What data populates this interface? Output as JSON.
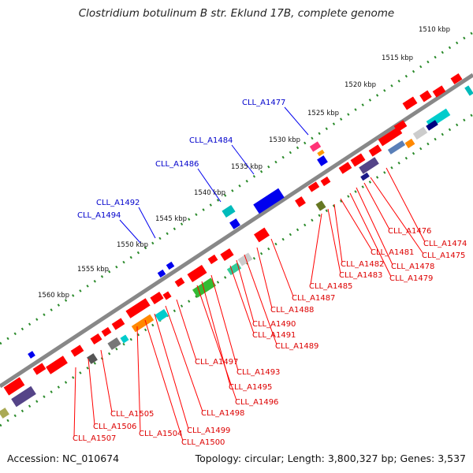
{
  "title": "Clostridium botulinum B str. Eklund 17B, complete genome",
  "accession": "Accession: NC_010674",
  "stats": "Topology: circular; Length: 3,800,327 bp; Genes: 3,537",
  "colors": {
    "backbone": "#777777",
    "scale_dots": "#2a8a2a",
    "forward_gene": "#ff0000",
    "reverse_gene": "#0000ee",
    "label_red": "#dd0000",
    "label_blue": "#0000cc"
  },
  "scale_ticks": [
    "1510 kbp",
    "1515 kbp",
    "1520 kbp",
    "1525 kbp",
    "1530 kbp",
    "1535 kbp",
    "1540 kbp",
    "1545 kbp",
    "1550 kbp",
    "1555 kbp",
    "1560 kbp"
  ],
  "upper_labels": [
    "CLL_A1477",
    "CLL_A1484",
    "CLL_A1486",
    "CLL_A1492",
    "CLL_A1494"
  ],
  "lower_labels": [
    "CLL_A1474",
    "CLL_A1475",
    "CLL_A1476",
    "CLL_A1478",
    "CLL_A1479",
    "CLL_A1481",
    "CLL_A1482",
    "CLL_A1483",
    "CLL_A1485",
    "CLL_A1487",
    "CLL_A1488",
    "CLL_A1489",
    "CLL_A1490",
    "CLL_A1491",
    "CLL_A1493",
    "CLL_A1495",
    "CLL_A1496",
    "CLL_A1497",
    "CLL_A1498",
    "CLL_A1499",
    "CLL_A1500",
    "CLL_A1504",
    "CLL_A1505",
    "CLL_A1506",
    "CLL_A1507"
  ]
}
